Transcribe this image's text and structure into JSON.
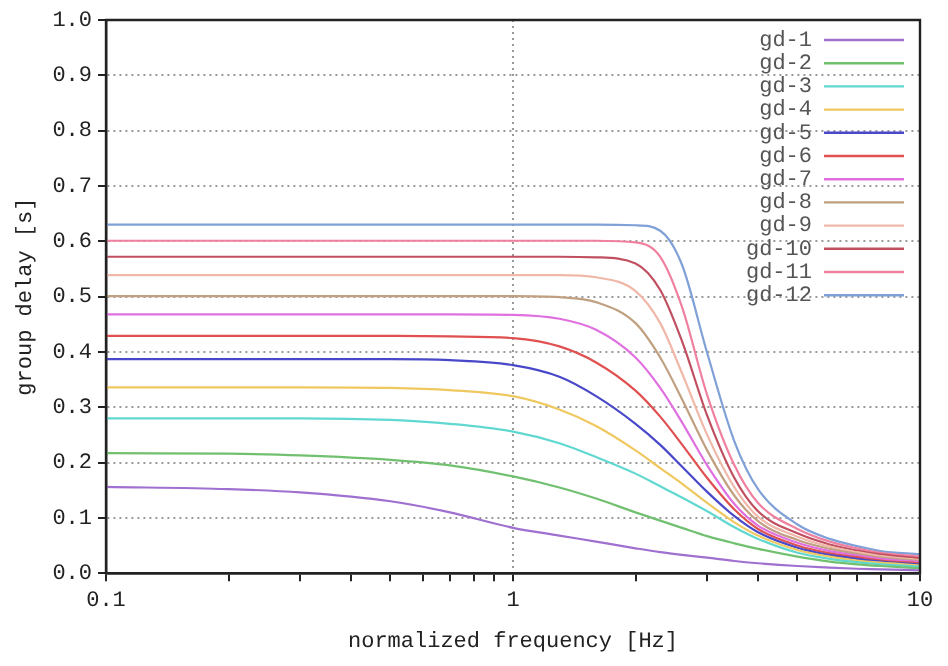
{
  "chart_data": {
    "type": "line",
    "xlabel": "normalized frequency [Hz]",
    "ylabel": "group delay [s]",
    "log": "x",
    "grid": true,
    "legend": "top right",
    "x": [
      0.1,
      0.2,
      0.3,
      0.5,
      0.7,
      1,
      1.3,
      1.6,
      2,
      2.3,
      2.6,
      3,
      3.5,
      4,
      5,
      6,
      7,
      8,
      10
    ],
    "xlim": [
      0.1,
      10
    ],
    "xticks": [
      {
        "value": 0.1,
        "label": "0.1"
      },
      {
        "value": 0.2,
        "label": null
      },
      {
        "value": 0.3,
        "label": null
      },
      {
        "value": 0.4,
        "label": null
      },
      {
        "value": 0.5,
        "label": null
      },
      {
        "value": 0.6,
        "label": null
      },
      {
        "value": 0.7,
        "label": null
      },
      {
        "value": 0.8,
        "label": null
      },
      {
        "value": 0.9,
        "label": null
      },
      1,
      {
        "value": 2,
        "label": null
      },
      {
        "value": 3,
        "label": null
      },
      {
        "value": 4,
        "label": null
      },
      {
        "value": 5,
        "label": null
      },
      {
        "value": 6,
        "label": null
      },
      {
        "value": 7,
        "label": null
      },
      {
        "value": 8,
        "label": null
      },
      {
        "value": 9,
        "label": null
      },
      10
    ],
    "ylim": [
      0,
      1
    ],
    "yticks": [
      {
        "value": 0,
        "label": "0.0"
      },
      0.1,
      0.2,
      0.3,
      0.4,
      0.5,
      0.6,
      0.7,
      0.8,
      0.9,
      {
        "value": 1,
        "label": "1.0"
      }
    ],
    "series": [
      {
        "name": "gd-1",
        "color": "#a070d0",
        "values": [
          0.156,
          0.152,
          0.146,
          0.13,
          0.11,
          0.082,
          0.068,
          0.057,
          0.045,
          0.038,
          0.033,
          0.028,
          0.022,
          0.018,
          0.013,
          0.01,
          0.008,
          0.007,
          0.005
        ]
      },
      {
        "name": "gd-2",
        "color": "#70c070",
        "values": [
          0.217,
          0.216,
          0.213,
          0.205,
          0.195,
          0.175,
          0.155,
          0.135,
          0.11,
          0.095,
          0.082,
          0.067,
          0.054,
          0.044,
          0.03,
          0.021,
          0.016,
          0.013,
          0.009
        ]
      },
      {
        "name": "gd-3",
        "color": "#60d8d0",
        "values": [
          0.28,
          0.28,
          0.28,
          0.277,
          0.27,
          0.256,
          0.235,
          0.21,
          0.18,
          0.157,
          0.137,
          0.112,
          0.083,
          0.062,
          0.037,
          0.026,
          0.02,
          0.016,
          0.012
        ]
      },
      {
        "name": "gd-4",
        "color": "#f0c860",
        "values": [
          0.336,
          0.336,
          0.336,
          0.335,
          0.331,
          0.32,
          0.296,
          0.266,
          0.222,
          0.19,
          0.162,
          0.127,
          0.092,
          0.068,
          0.042,
          0.03,
          0.023,
          0.019,
          0.014
        ]
      },
      {
        "name": "gd-5",
        "color": "#4848c8",
        "values": [
          0.387,
          0.387,
          0.387,
          0.387,
          0.385,
          0.376,
          0.355,
          0.32,
          0.27,
          0.232,
          0.193,
          0.147,
          0.103,
          0.074,
          0.046,
          0.033,
          0.026,
          0.021,
          0.016
        ]
      },
      {
        "name": "gd-6",
        "color": "#e05050",
        "values": [
          0.429,
          0.429,
          0.429,
          0.429,
          0.428,
          0.425,
          0.41,
          0.381,
          0.33,
          0.283,
          0.233,
          0.172,
          0.115,
          0.08,
          0.05,
          0.036,
          0.029,
          0.023,
          0.018
        ]
      },
      {
        "name": "gd-7",
        "color": "#e070e0",
        "values": [
          0.468,
          0.468,
          0.468,
          0.468,
          0.468,
          0.467,
          0.46,
          0.44,
          0.39,
          0.335,
          0.273,
          0.195,
          0.125,
          0.086,
          0.055,
          0.04,
          0.032,
          0.026,
          0.02
        ]
      },
      {
        "name": "gd-8",
        "color": "#c0a080",
        "values": [
          0.501,
          0.501,
          0.501,
          0.501,
          0.501,
          0.501,
          0.499,
          0.49,
          0.452,
          0.39,
          0.315,
          0.222,
          0.14,
          0.094,
          0.06,
          0.044,
          0.035,
          0.028,
          0.022
        ]
      },
      {
        "name": "gd-9",
        "color": "#f0b8a8",
        "values": [
          0.539,
          0.539,
          0.539,
          0.539,
          0.539,
          0.539,
          0.539,
          0.535,
          0.51,
          0.452,
          0.362,
          0.25,
          0.155,
          0.102,
          0.066,
          0.048,
          0.038,
          0.031,
          0.024
        ]
      },
      {
        "name": "gd-10",
        "color": "#c05060",
        "values": [
          0.572,
          0.572,
          0.572,
          0.572,
          0.572,
          0.572,
          0.572,
          0.571,
          0.56,
          0.512,
          0.42,
          0.285,
          0.172,
          0.112,
          0.072,
          0.052,
          0.041,
          0.034,
          0.027
        ]
      },
      {
        "name": "gd-11",
        "color": "#f080a0",
        "values": [
          0.601,
          0.601,
          0.601,
          0.601,
          0.601,
          0.601,
          0.601,
          0.601,
          0.598,
          0.572,
          0.482,
          0.322,
          0.195,
          0.127,
          0.08,
          0.057,
          0.045,
          0.037,
          0.03
        ]
      },
      {
        "name": "gd-12",
        "color": "#80a0d8",
        "values": [
          0.63,
          0.63,
          0.63,
          0.63,
          0.63,
          0.63,
          0.63,
          0.63,
          0.629,
          0.619,
          0.558,
          0.398,
          0.238,
          0.152,
          0.088,
          0.062,
          0.049,
          0.04,
          0.034
        ]
      }
    ]
  }
}
